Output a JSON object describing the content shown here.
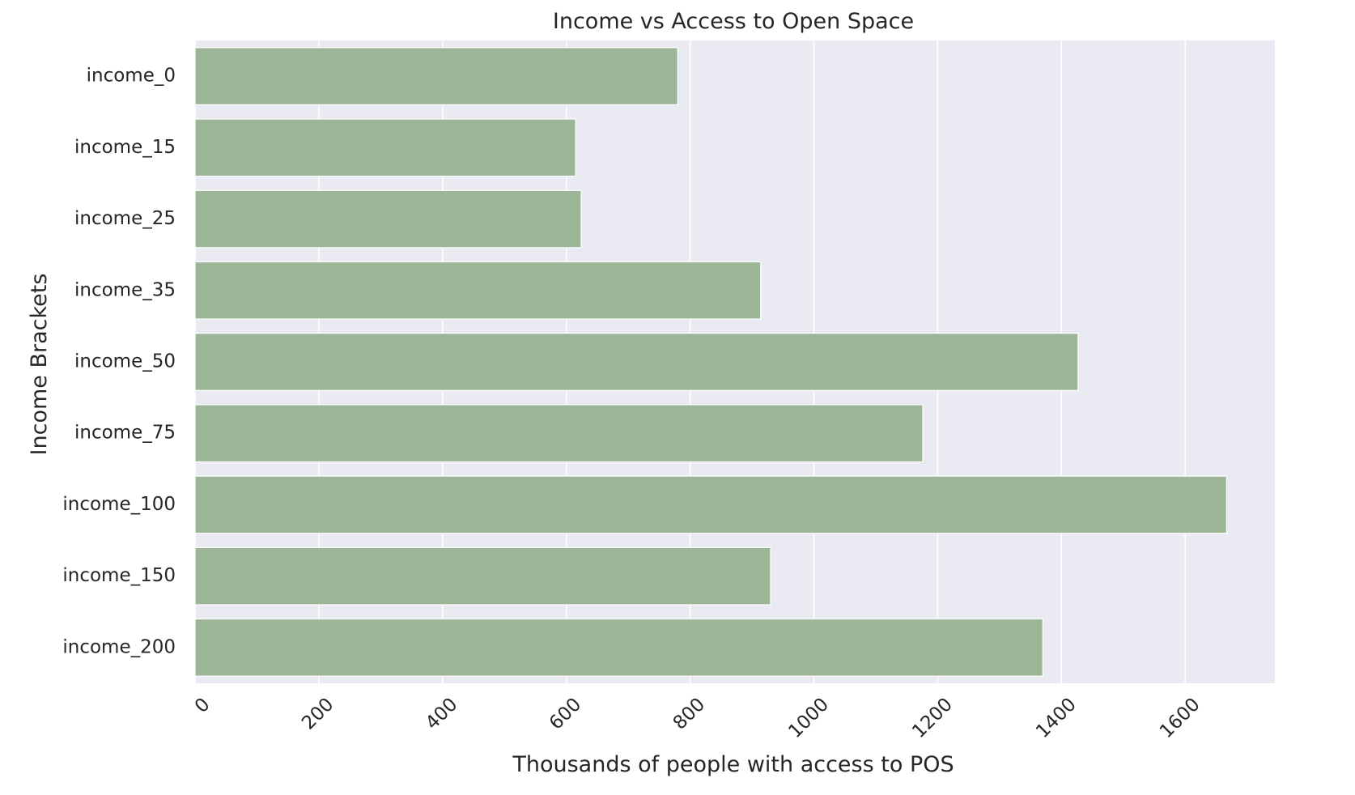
{
  "chart_data": {
    "type": "bar",
    "orientation": "horizontal",
    "title": "Income vs Access to Open Space",
    "xlabel": "Thousands of people with access to POS",
    "ylabel": "Income Brackets",
    "categories": [
      "income_0",
      "income_15",
      "income_25",
      "income_35",
      "income_50",
      "income_75",
      "income_100",
      "income_150",
      "income_200"
    ],
    "values": [
      780,
      615,
      624,
      914,
      1427,
      1176,
      1667,
      930,
      1370
    ],
    "xlim": [
      0,
      1745
    ],
    "xticks": [
      0,
      200,
      400,
      600,
      800,
      1000,
      1200,
      1400,
      1600
    ],
    "grid": true,
    "bar_color": "#9cb597",
    "background_color": "#eaeaf2",
    "grid_color": "#ffffff"
  }
}
